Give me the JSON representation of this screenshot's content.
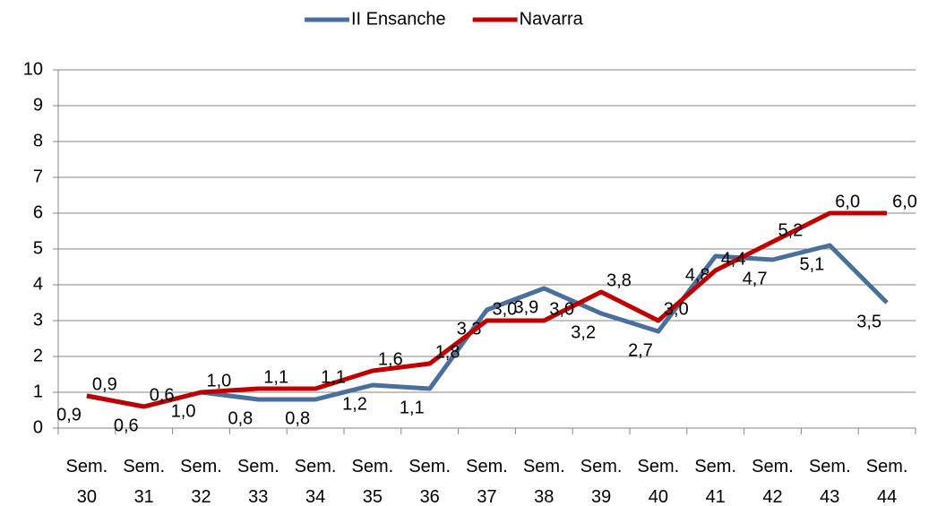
{
  "chart_data": {
    "type": "line",
    "categories": [
      "Sem. 30",
      "Sem. 31",
      "Sem. 32",
      "Sem. 33",
      "Sem. 34",
      "Sem. 35",
      "Sem. 36",
      "Sem. 37",
      "Sem. 38",
      "Sem. 39",
      "Sem. 40",
      "Sem. 41",
      "Sem. 42",
      "Sem. 43",
      "Sem. 44"
    ],
    "series": [
      {
        "name": "II Ensanche",
        "color": "#4a6f9e",
        "values": [
          0.9,
          0.6,
          1.0,
          0.8,
          0.8,
          1.2,
          1.1,
          3.3,
          3.9,
          3.2,
          2.7,
          4.8,
          4.7,
          5.1,
          3.5
        ],
        "value_labels": [
          "0,9",
          "0,6",
          "1,0",
          "0,8",
          "0,8",
          "1,2",
          "1,1",
          "3,3",
          "3,9",
          "3,2",
          "2,7",
          "4,8",
          "4,7",
          "5,1",
          "3,5"
        ]
      },
      {
        "name": "Navarra",
        "color": "#c00000",
        "values": [
          0.9,
          0.6,
          1.0,
          1.1,
          1.1,
          1.6,
          1.8,
          3.0,
          3.0,
          3.8,
          3.0,
          4.4,
          5.2,
          6.0,
          6.0
        ],
        "value_labels": [
          "0,9",
          "0,6",
          "1,0",
          "1,1",
          "1,1",
          "1,6",
          "1,8",
          "3,0",
          "3,0",
          "3,8",
          "3,0",
          "4,4",
          "5,2",
          "6,0",
          "6,0"
        ]
      }
    ],
    "ylim": [
      0,
      10
    ],
    "yticks": [
      0,
      1,
      2,
      3,
      4,
      5,
      6,
      7,
      8,
      9,
      10
    ],
    "grid": true,
    "legend": "top"
  }
}
